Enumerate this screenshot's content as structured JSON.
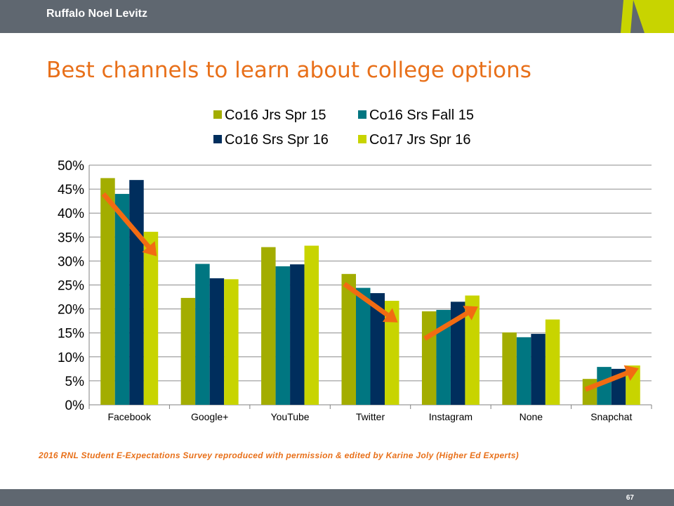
{
  "header": {
    "brand": "Ruffalo Noel Levitz"
  },
  "slide": {
    "title": "Best channels to learn about college options",
    "footnote": "2016 RNL Student E-Expectations Survey reproduced with permission & edited by Karine Joly (Higher Ed Experts)",
    "page_number": "67"
  },
  "colors": {
    "bar_bg": "#5f6770",
    "accent": "#c8d400",
    "title": "#e8701a",
    "arrow": "#f26b12"
  },
  "chart_data": {
    "type": "bar",
    "title": "",
    "xlabel": "",
    "ylabel": "",
    "ylim": [
      0,
      0.5
    ],
    "yticks": [
      "0%",
      "5%",
      "10%",
      "15%",
      "20%",
      "25%",
      "30%",
      "35%",
      "40%",
      "45%",
      "50%"
    ],
    "grid": true,
    "legend_position": "top",
    "categories": [
      "Facebook",
      "Google+",
      "YouTube",
      "Twitter",
      "Instagram",
      "None",
      "Snapchat"
    ],
    "series": [
      {
        "name": "Co16 Jrs Spr 15",
        "color": "#a3ad00",
        "values": [
          0.473,
          0.223,
          0.329,
          0.273,
          0.195,
          0.151,
          0.054
        ]
      },
      {
        "name": "Co16 Srs Fall 15",
        "color": "#007681",
        "values": [
          0.44,
          0.294,
          0.289,
          0.244,
          0.198,
          0.141,
          0.079
        ]
      },
      {
        "name": "Co16 Srs Spr 16",
        "color": "#002e5d",
        "values": [
          0.469,
          0.264,
          0.293,
          0.233,
          0.215,
          0.148,
          0.075
        ]
      },
      {
        "name": "Co17 Jrs Spr 16",
        "color": "#c8d400",
        "values": [
          0.361,
          0.262,
          0.332,
          0.217,
          0.228,
          0.178,
          0.082
        ]
      }
    ],
    "annotations": [
      {
        "type": "arrow",
        "category": "Facebook",
        "from_value": 0.44,
        "to_value": 0.31,
        "from_series": 0,
        "to_series": 3
      },
      {
        "type": "arrow",
        "category": "Twitter",
        "from_value": 0.252,
        "to_value": 0.172,
        "from_series": 0,
        "to_series": 3
      },
      {
        "type": "arrow",
        "category": "Instagram",
        "from_value": 0.138,
        "to_value": 0.205,
        "from_series": 0,
        "to_series": 3
      },
      {
        "type": "arrow",
        "category": "Snapchat",
        "from_value": 0.032,
        "to_value": 0.076,
        "from_series": 0,
        "to_series": 3
      }
    ]
  }
}
